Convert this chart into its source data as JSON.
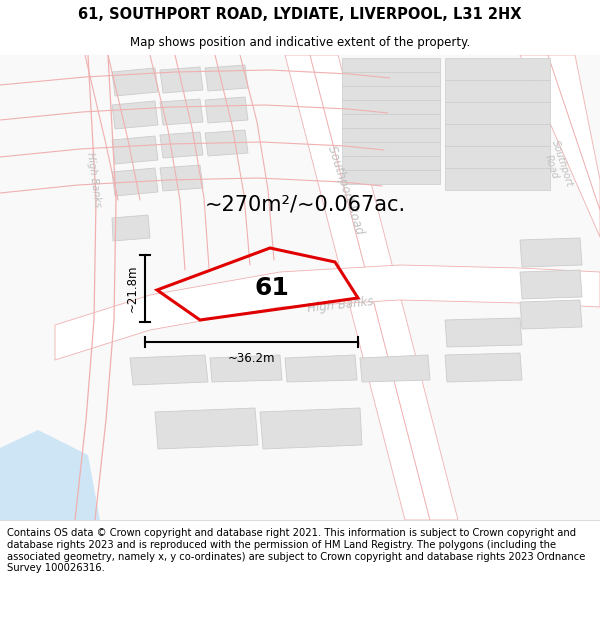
{
  "title_line1": "61, SOUTHPORT ROAD, LYDIATE, LIVERPOOL, L31 2HX",
  "title_line2": "Map shows position and indicative extent of the property.",
  "area_text": "~270m²/~0.067ac.",
  "width_label": "~36.2m",
  "height_label": "~21.8m",
  "property_number": "61",
  "footer_text": "Contains OS data © Crown copyright and database right 2021. This information is subject to Crown copyright and database rights 2023 and is reproduced with the permission of HM Land Registry. The polygons (including the associated geometry, namely x, y co-ordinates) are subject to Crown copyright and database rights 2023 Ordnance Survey 100026316.",
  "title_fontsize": 10.5,
  "subtitle_fontsize": 8.5,
  "footer_fontsize": 7.2,
  "area_fontsize": 15,
  "prop_num_fontsize": 18,
  "dim_fontsize": 8.5,
  "road_label_fontsize": 8.5,
  "bg_white": "#ffffff",
  "map_bg": "#f8f8f8",
  "road_line_color": "#f0b0b0",
  "road_fill": "#ffffff",
  "block_fill": "#e0e0e0",
  "block_edge": "#cccccc",
  "property_stroke": "#e00000",
  "water_color": "#cde5f5",
  "road_label_color": "#c0c0c0",
  "dim_color": "#000000",
  "area_color": "#000000",
  "prop_num_color": "#000000"
}
